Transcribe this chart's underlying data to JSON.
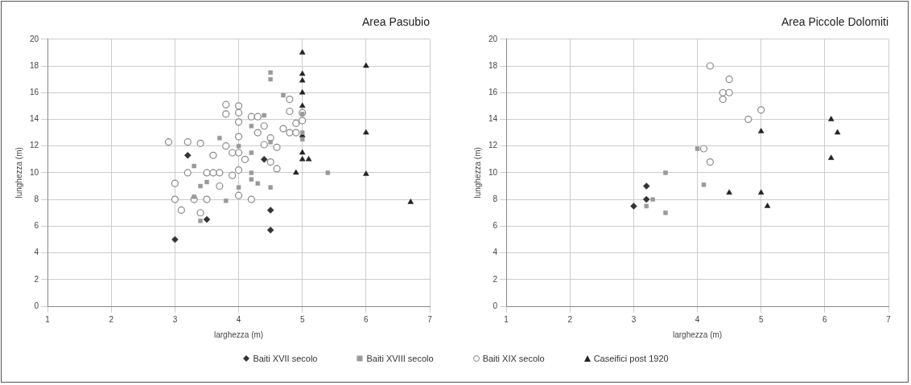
{
  "chart_data": [
    {
      "type": "scatter",
      "title": "Area Pasubio",
      "xlabel": "larghezza (m)",
      "ylabel": "lunghezza (m)",
      "xlim": [
        1,
        7
      ],
      "xticks": [
        1,
        2,
        3,
        4,
        5,
        6,
        7
      ],
      "ylim": [
        0,
        20
      ],
      "yticks": [
        0,
        2,
        4,
        6,
        8,
        10,
        12,
        14,
        16,
        18,
        20
      ],
      "grid": true,
      "legend": "bottom",
      "series": [
        {
          "name": "Baiti XVII secolo",
          "color": "#333333",
          "marker": "diamond",
          "x": [
            3,
            3.2,
            3.5,
            4.4,
            4.5,
            4.5
          ],
          "values": [
            5,
            11.3,
            6.5,
            11,
            7.2,
            5.7
          ]
        },
        {
          "name": "Baiti XVIII secolo",
          "color": "#999999",
          "marker": "square",
          "x": [
            3.3,
            3.3,
            3.4,
            3.4,
            3.5,
            3.7,
            3.8,
            4,
            4,
            4.2,
            4.2,
            4.2,
            4.3,
            4.4,
            4.5,
            4.5,
            4.5,
            4.5,
            4.7,
            5,
            5,
            5,
            5.4,
            4.2
          ],
          "values": [
            10.5,
            8.2,
            6.4,
            9,
            9.3,
            12.6,
            7.9,
            8.9,
            12,
            10,
            11.5,
            13.5,
            9.2,
            14.3,
            17.5,
            17,
            8.9,
            12.3,
            15.8,
            13,
            12.5,
            14.4,
            10,
            9.5
          ]
        },
        {
          "name": "Baiti XIX secolo",
          "color": "#888888",
          "marker": "circle",
          "x": [
            2.9,
            3,
            3,
            3.1,
            3.2,
            3.2,
            3.3,
            3.4,
            3.4,
            3.5,
            3.5,
            3.6,
            3.6,
            3.7,
            3.7,
            3.8,
            3.8,
            3.8,
            3.9,
            4,
            4,
            4,
            4,
            4,
            4,
            4,
            4.1,
            4.2,
            4.2,
            4.3,
            4.3,
            4.4,
            4.4,
            4.5,
            4.5,
            4.6,
            4.6,
            4.7,
            4.8,
            4.8,
            4.8,
            4.9,
            4.9,
            5,
            5,
            3.9
          ],
          "values": [
            12.3,
            9.2,
            8,
            7.2,
            12.3,
            10,
            8,
            12.2,
            7,
            10,
            8,
            10,
            11.3,
            10,
            9,
            15.1,
            14.4,
            12,
            9.8,
            15,
            14.5,
            13.8,
            12.7,
            11.5,
            10.2,
            8.3,
            11,
            14.2,
            8,
            13,
            14.2,
            13.5,
            12.1,
            12.6,
            10.8,
            11.9,
            10.3,
            13.3,
            13,
            14.6,
            15.5,
            13.7,
            13,
            14.5,
            13.9,
            11.5
          ]
        },
        {
          "name": "Caseifici post 1920",
          "color": "#222222",
          "marker": "triangle",
          "x": [
            4.9,
            5,
            5,
            5,
            5,
            5,
            5,
            5,
            5,
            5.1,
            6,
            6,
            6,
            6.7
          ],
          "values": [
            10,
            11,
            11.5,
            12.8,
            15,
            16,
            16.9,
            17.4,
            19,
            11,
            18,
            13,
            9.9,
            7.8
          ]
        }
      ]
    },
    {
      "type": "scatter",
      "title": "Area Piccole Dolomiti",
      "xlabel": "larghezza (m)",
      "ylabel": "lunghezza (m)",
      "xlim": [
        1,
        7
      ],
      "xticks": [
        1,
        2,
        3,
        4,
        5,
        6,
        7
      ],
      "ylim": [
        0,
        20
      ],
      "yticks": [
        0,
        2,
        4,
        6,
        8,
        10,
        12,
        14,
        16,
        18,
        20
      ],
      "grid": true,
      "series": [
        {
          "color": "#333333",
          "marker": "diamond",
          "x": [
            3.2,
            3.2,
            3
          ],
          "values": [
            9,
            8,
            7.5
          ]
        },
        {
          "color": "#999999",
          "marker": "square",
          "x": [
            4,
            3.5,
            4.1,
            3.3,
            3.2,
            3.5
          ],
          "values": [
            11.8,
            10,
            9.1,
            8,
            7.5,
            7
          ]
        },
        {
          "color": "#888888",
          "marker": "circle",
          "x": [
            4.2,
            4.5,
            4.4,
            4.5,
            4.4,
            5,
            4.8,
            4.1,
            4.2
          ],
          "values": [
            18,
            17,
            16,
            16,
            15.5,
            14.7,
            14,
            11.8,
            10.8
          ]
        },
        {
          "color": "#222222",
          "marker": "triangle",
          "x": [
            6.1,
            6.2,
            6.1,
            5,
            4.5,
            5,
            5.1
          ],
          "values": [
            14,
            13,
            11.1,
            13.1,
            8.5,
            8.5,
            7.5
          ]
        }
      ]
    }
  ]
}
